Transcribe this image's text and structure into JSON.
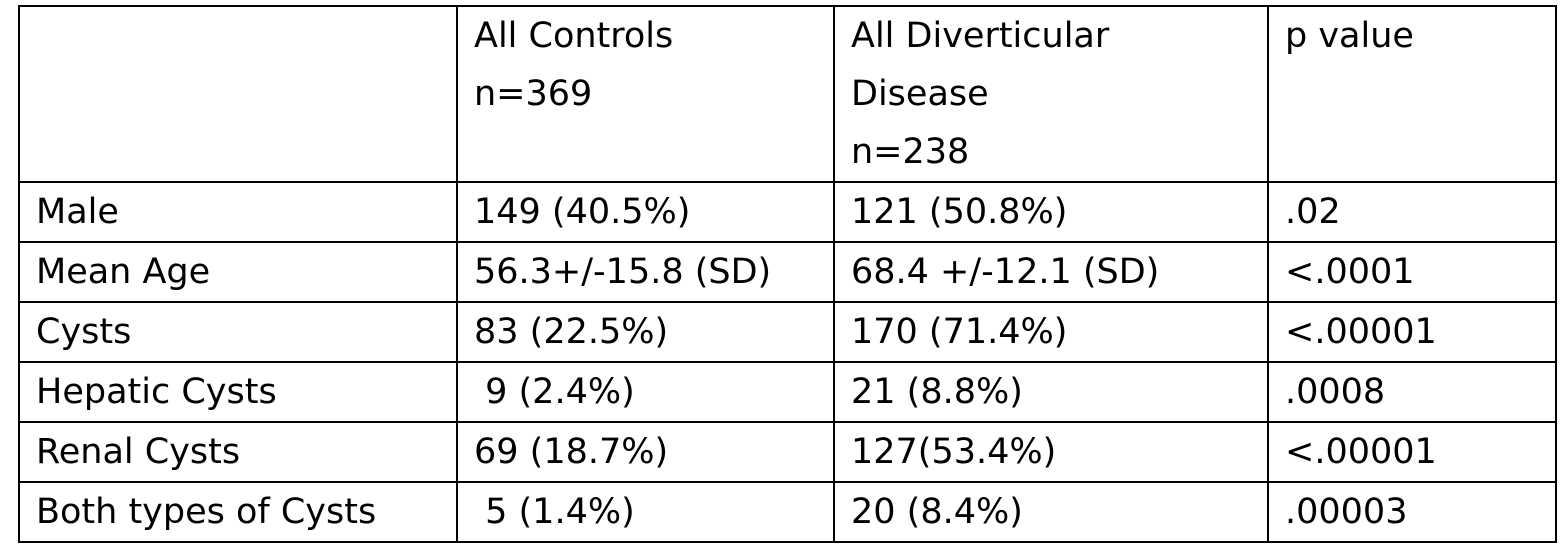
{
  "table": {
    "header": {
      "blank": "",
      "controls": {
        "line1": "All Controls",
        "line2": "n=369"
      },
      "diverticular": {
        "line1": "All Diverticular",
        "line2": "Disease",
        "line3": "n=238"
      },
      "pvalue": "p value"
    },
    "rows": [
      {
        "label": "Male",
        "controls": "149 (40.5%)",
        "diverticular": "121 (50.8%)",
        "p": ".02"
      },
      {
        "label": "Mean Age",
        "controls": "56.3+/-15.8 (SD)",
        "diverticular": "68.4 +/-12.1 (SD)",
        "p": "<.0001"
      },
      {
        "label": "Cysts",
        "controls": "83 (22.5%)",
        "diverticular": "170 (71.4%)",
        "p": "<.00001"
      },
      {
        "label": "Hepatic Cysts",
        "controls": " 9 (2.4%)",
        "diverticular": "21 (8.8%)",
        "p": ".0008"
      },
      {
        "label": "Renal Cysts",
        "controls": "69 (18.7%)",
        "diverticular": "127(53.4%)",
        "p": "<.00001"
      },
      {
        "label": "Both types of Cysts",
        "controls": " 5 (1.4%)",
        "diverticular": "20 (8.4%)",
        "p": ".00003"
      }
    ]
  }
}
